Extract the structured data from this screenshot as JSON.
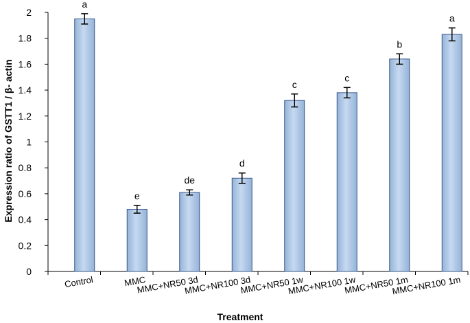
{
  "chart_data": {
    "type": "bar",
    "xlabel": "Treatment",
    "ylabel": "Expression ratio of GSTT1 / β- actin",
    "ylim": [
      0,
      2
    ],
    "yticks": [
      "0",
      "0.2",
      "0.4",
      "0.6",
      "0.8",
      "1",
      "1.2",
      "1.4",
      "1.6",
      "1.8",
      "2"
    ],
    "categories": [
      "Control",
      "MMC",
      "MMC+NR50 3d",
      "MMC+NR100 3d",
      "MMC+NR50 1w",
      "MMC+NR100 1w",
      "MMC+NR50 1m",
      "MMC+NR100 1m"
    ],
    "values": [
      1.95,
      0.48,
      0.61,
      0.72,
      1.32,
      1.38,
      1.64,
      1.83
    ],
    "errors": [
      0.04,
      0.03,
      0.02,
      0.04,
      0.05,
      0.04,
      0.04,
      0.05
    ],
    "significance_labels": [
      "a",
      "e",
      "de",
      "d",
      "c",
      "c",
      "b",
      "a"
    ],
    "grid": false,
    "legend": "none",
    "colors": {
      "bar_fill": "#95B3D7",
      "bar_highlight": "#C6D9F1",
      "bar_stroke": "#3A5A8C",
      "axis": "#000000",
      "error_bar": "#000000"
    }
  }
}
